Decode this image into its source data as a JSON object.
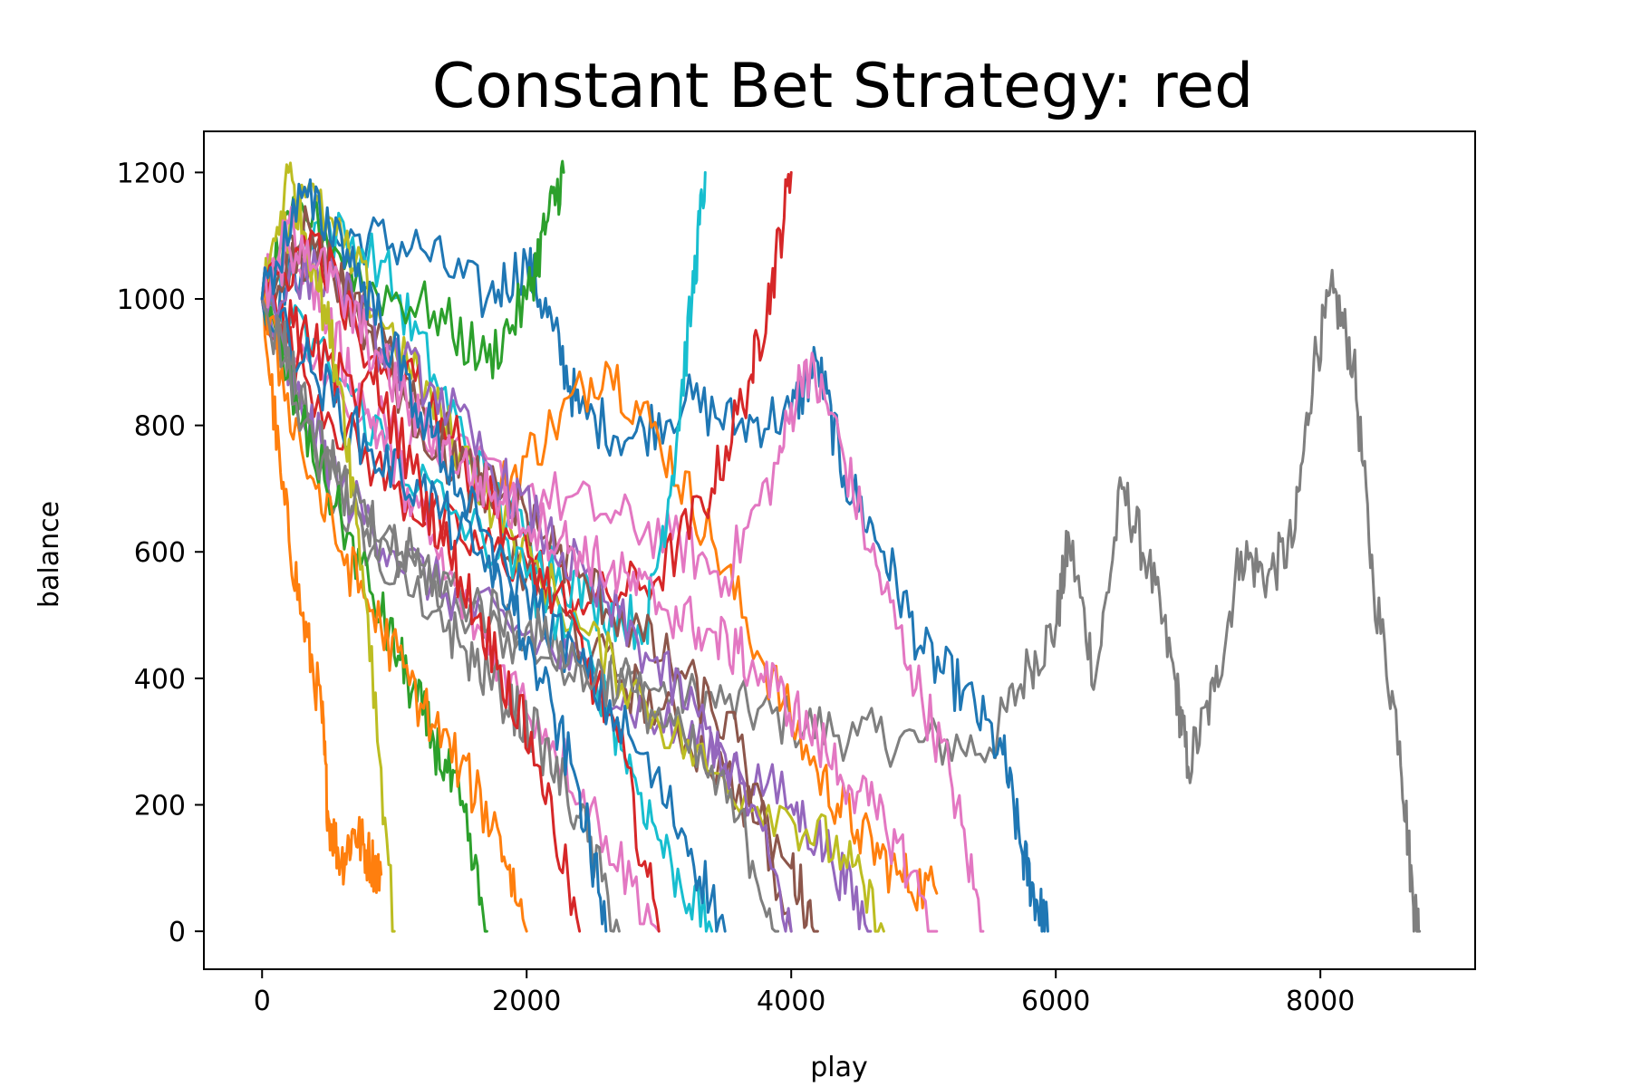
{
  "chart_data": {
    "type": "line",
    "title": "Constant Bet Strategy: red",
    "xlabel": "play",
    "ylabel": "balance",
    "xlim": [
      -440,
      9170
    ],
    "ylim": [
      -60,
      1265
    ],
    "xticks": [
      0,
      2000,
      4000,
      6000,
      8000
    ],
    "yticks": [
      0,
      200,
      400,
      600,
      800,
      1000,
      1200
    ],
    "grid": false,
    "legend": "none",
    "palette": [
      "#1f77b4",
      "#ff7f0e",
      "#2ca02c",
      "#d62728",
      "#9467bd",
      "#8c564b",
      "#e377c2",
      "#7f7f7f",
      "#bcbd22",
      "#17becf"
    ],
    "series": [
      {
        "color": "#7f7f7f",
        "x": [
          0,
          500,
          1000,
          1500,
          2000,
          2500,
          3000,
          3500,
          4000,
          4500,
          5000,
          5500,
          5800,
          6000,
          6100,
          6300,
          6500,
          6700,
          6900,
          7000,
          7200,
          7400,
          7600,
          7800,
          7950,
          8100,
          8250,
          8400,
          8600,
          8700,
          8750
        ],
        "y": [
          1000,
          700,
          550,
          500,
          450,
          420,
          380,
          360,
          330,
          310,
          300,
          290,
          420,
          480,
          620,
          400,
          700,
          580,
          400,
          260,
          380,
          600,
          560,
          620,
          900,
          1010,
          900,
          550,
          300,
          50,
          0
        ]
      },
      {
        "color": "#1f77b4",
        "x": [
          0,
          300,
          700,
          1200,
          1700,
          2000,
          2200,
          2400,
          2800,
          3200,
          3600,
          4000,
          4200,
          4400,
          4700,
          5000,
          5300,
          5600,
          5750,
          5850,
          5940
        ],
        "y": [
          1000,
          1050,
          1100,
          1080,
          1000,
          1060,
          950,
          820,
          780,
          840,
          800,
          820,
          900,
          720,
          600,
          440,
          380,
          280,
          120,
          50,
          0
        ]
      },
      {
        "color": "#ff7f0e",
        "x": [
          0,
          150,
          300,
          450,
          500,
          600,
          700,
          800,
          900
        ],
        "y": [
          1000,
          700,
          500,
          350,
          180,
          110,
          160,
          120,
          90
        ]
      },
      {
        "color": "#ff7f0e",
        "x": [
          1800,
          2200,
          2600,
          3000,
          3400,
          3800,
          4200,
          4500,
          4800,
          5100
        ],
        "y": [
          700,
          800,
          900,
          780,
          620,
          420,
          250,
          160,
          90,
          60
        ]
      },
      {
        "color": "#e377c2",
        "x": [
          0,
          600,
          1300,
          2000,
          2600,
          3100,
          3500,
          3900,
          4100,
          4300,
          4600,
          4900,
          5200,
          5450
        ],
        "y": [
          1000,
          850,
          760,
          700,
          660,
          620,
          560,
          740,
          900,
          820,
          600,
          420,
          250,
          0
        ]
      },
      {
        "color": "#d62728",
        "x": [
          0,
          500,
          1000,
          1500,
          2000,
          2500,
          3000,
          3400,
          3700,
          3850,
          4000
        ],
        "y": [
          1000,
          820,
          700,
          620,
          580,
          520,
          560,
          700,
          880,
          1020,
          1200
        ]
      },
      {
        "color": "#17becf",
        "x": [
          0,
          400,
          900,
          1300,
          1700,
          2100,
          2500,
          2900,
          3100,
          3250,
          3350
        ],
        "y": [
          1000,
          1120,
          1060,
          880,
          700,
          600,
          520,
          480,
          720,
          1000,
          1200
        ]
      },
      {
        "color": "#2ca02c",
        "x": [
          0,
          300,
          800,
          1300,
          1700,
          2000,
          2150,
          2280
        ],
        "y": [
          1000,
          1150,
          1020,
          980,
          900,
          1000,
          1120,
          1200
        ]
      },
      {
        "color": "#9467bd",
        "x": [
          0,
          250,
          600,
          1000,
          1500,
          2000,
          2500,
          3000,
          3500,
          4000,
          4300,
          4600
        ],
        "y": [
          1000,
          850,
          700,
          600,
          520,
          470,
          400,
          330,
          280,
          200,
          120,
          0
        ]
      },
      {
        "color": "#8c564b",
        "x": [
          0,
          350,
          800,
          1200,
          1600,
          2000,
          2500,
          3000,
          3500,
          4000,
          4200
        ],
        "y": [
          1000,
          1120,
          950,
          800,
          700,
          560,
          440,
          350,
          250,
          100,
          0
        ]
      },
      {
        "color": "#bcbd22",
        "x": [
          0,
          300,
          700,
          1100,
          1500,
          1900,
          2400,
          2900,
          3400,
          4000,
          4400,
          4700
        ],
        "y": [
          1000,
          1180,
          1050,
          900,
          760,
          620,
          480,
          360,
          250,
          180,
          120,
          0
        ]
      },
      {
        "color": "#17becf",
        "x": [
          0,
          500,
          1000,
          1500,
          2000,
          2500,
          2800,
          3100,
          3400
        ],
        "y": [
          1000,
          900,
          750,
          650,
          560,
          420,
          250,
          100,
          0
        ]
      },
      {
        "color": "#e377c2",
        "x": [
          0,
          200,
          500,
          800,
          1100,
          1400,
          1800,
          2200,
          2600,
          3000
        ],
        "y": [
          1000,
          1120,
          960,
          820,
          700,
          560,
          420,
          300,
          150,
          0
        ]
      },
      {
        "color": "#d62728",
        "x": [
          0,
          300,
          700,
          1100,
          1500,
          1900,
          2300,
          2700,
          3000
        ],
        "y": [
          1000,
          950,
          840,
          900,
          760,
          620,
          500,
          300,
          0
        ]
      },
      {
        "color": "#1f77b4",
        "x": [
          0,
          400,
          800,
          1200,
          1600,
          2000,
          2400,
          2800,
          3200,
          3500
        ],
        "y": [
          1000,
          880,
          760,
          700,
          600,
          540,
          420,
          300,
          150,
          0
        ]
      },
      {
        "color": "#7f7f7f",
        "x": [
          0,
          300,
          600,
          900,
          1200,
          1500,
          1800,
          2100,
          2400,
          2700
        ],
        "y": [
          1000,
          860,
          700,
          620,
          560,
          450,
          380,
          300,
          180,
          0
        ]
      },
      {
        "color": "#2ca02c",
        "x": [
          0,
          300,
          600,
          900,
          1100,
          1300,
          1500,
          1700
        ],
        "y": [
          1000,
          800,
          650,
          500,
          400,
          300,
          200,
          0
        ]
      },
      {
        "color": "#8c564b",
        "x": [
          0,
          400,
          800,
          1200,
          1600,
          2000,
          2400,
          2800,
          3200,
          3600,
          4000
        ],
        "y": [
          1000,
          1080,
          960,
          840,
          720,
          660,
          560,
          480,
          400,
          300,
          0
        ]
      },
      {
        "color": "#ff7f0e",
        "x": [
          0,
          300,
          600,
          900,
          1200,
          1500,
          1800,
          2000
        ],
        "y": [
          1000,
          760,
          600,
          480,
          360,
          260,
          150,
          0
        ]
      },
      {
        "color": "#9467bd",
        "x": [
          0,
          500,
          900,
          1300,
          1700,
          2100,
          2500,
          2900,
          3300,
          3700,
          4000
        ],
        "y": [
          1000,
          1050,
          920,
          860,
          740,
          640,
          540,
          440,
          340,
          200,
          0
        ]
      },
      {
        "color": "#bcbd22",
        "x": [
          0,
          200,
          400,
          600,
          800,
          1000
        ],
        "y": [
          1000,
          1200,
          1050,
          860,
          500,
          0
        ]
      },
      {
        "color": "#7f7f7f",
        "x": [
          0,
          400,
          800,
          1200,
          1600,
          2000,
          2400,
          2800,
          3200,
          3600,
          3900
        ],
        "y": [
          1000,
          760,
          640,
          580,
          520,
          480,
          420,
          380,
          300,
          180,
          0
        ]
      },
      {
        "color": "#d62728",
        "x": [
          0,
          400,
          800,
          1200,
          1500,
          1800,
          2100,
          2400
        ],
        "y": [
          1000,
          1100,
          900,
          700,
          560,
          420,
          260,
          0
        ]
      },
      {
        "color": "#e377c2",
        "x": [
          0,
          300,
          600,
          900,
          1200,
          1500,
          1800,
          2100,
          2400,
          2700,
          3000,
          3300,
          3600,
          3900,
          4200,
          4500,
          4800,
          5100
        ],
        "y": [
          1000,
          1100,
          1000,
          900,
          800,
          740,
          680,
          640,
          600,
          560,
          520,
          480,
          440,
          380,
          300,
          220,
          140,
          0
        ]
      },
      {
        "color": "#1f77b4",
        "x": [
          0,
          300,
          600,
          900,
          1200,
          1500,
          1800,
          2100,
          2400,
          2600
        ],
        "y": [
          1000,
          1160,
          1100,
          960,
          820,
          700,
          560,
          400,
          220,
          0
        ]
      }
    ]
  }
}
